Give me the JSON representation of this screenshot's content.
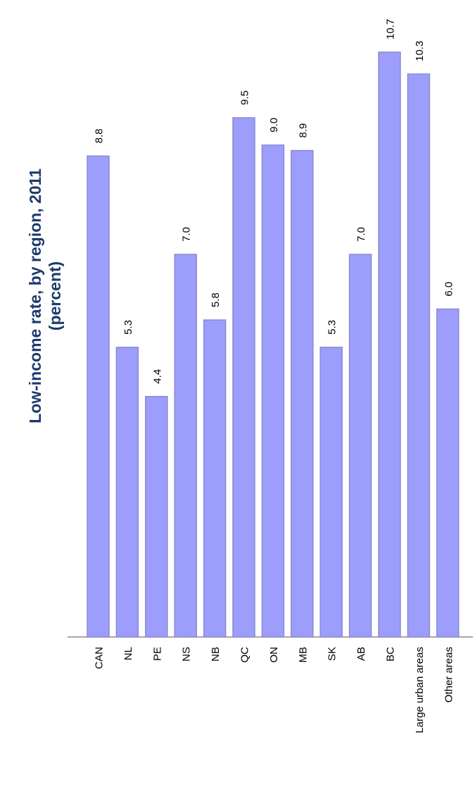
{
  "colors": {
    "bar_fill": "#9d9dfb",
    "bar_stroke": "#8a8ad6",
    "title": "#1b3a6b",
    "axis": "#8c8c8c",
    "background": "#ffffff"
  },
  "chart_data": {
    "type": "bar",
    "orientation": "rotated-90",
    "title": "Low-income rate, by region, 2011",
    "subtitle": "(percent)",
    "xlabel": "",
    "ylabel": "",
    "ylim": [
      0,
      10.7
    ],
    "grid": false,
    "legend": "none",
    "categories": [
      "CAN",
      "NL",
      "PE",
      "NS",
      "NB",
      "QC",
      "ON",
      "MB",
      "SK",
      "AB",
      "BC",
      "Large urban areas",
      "Other areas"
    ],
    "values": [
      8.8,
      5.3,
      4.4,
      7.0,
      5.8,
      9.5,
      9.0,
      8.9,
      5.3,
      7.0,
      10.7,
      10.3,
      6.0
    ],
    "value_labels": [
      "8.8",
      "5.3",
      "4.4",
      "7.0",
      "5.8",
      "9.5",
      "9.0",
      "8.9",
      "5.3",
      "7.0",
      "10.7",
      "10.3",
      "6.0"
    ]
  }
}
